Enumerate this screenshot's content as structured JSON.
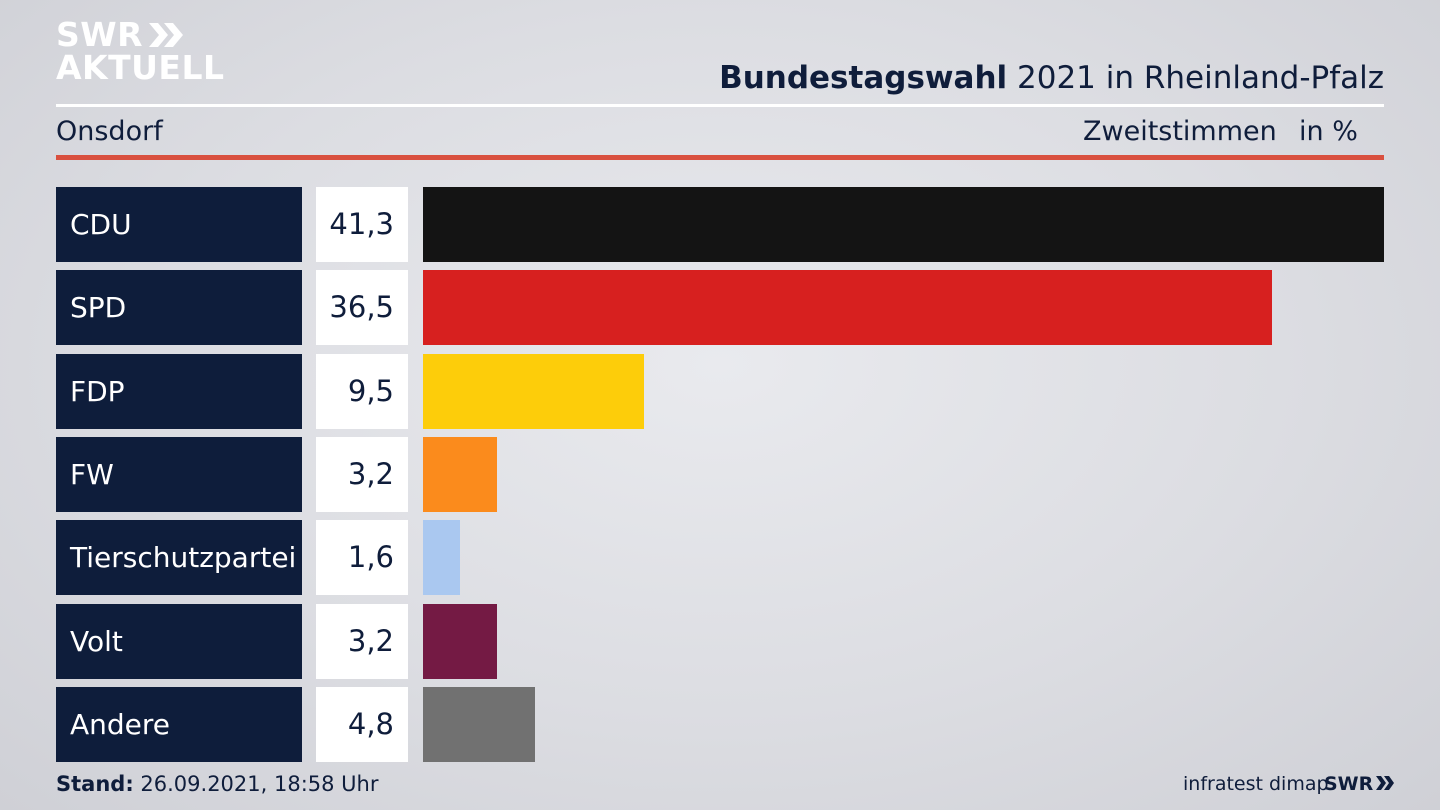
{
  "brand": {
    "line1": "SWR",
    "line2": "AKTUELL"
  },
  "header": {
    "title_bold": "Bundestagswahl",
    "title_rest": " 2021 in Rheinland-Pfalz",
    "region": "Onsdorf",
    "metric": "Zweitstimmen",
    "unit": "in %"
  },
  "chart_data": {
    "type": "bar",
    "orientation": "horizontal",
    "title": "Bundestagswahl 2021 in Rheinland-Pfalz",
    "subtitle": "Onsdorf",
    "xlabel": "Zweitstimmen in %",
    "ylabel": "",
    "xlim": [
      0,
      41.3
    ],
    "categories": [
      "CDU",
      "SPD",
      "FDP",
      "FW",
      "Tierschutzpartei",
      "Volt",
      "Andere"
    ],
    "values": [
      41.3,
      36.5,
      9.5,
      3.2,
      1.6,
      3.2,
      4.8
    ],
    "labels": [
      "41,3",
      "36,5",
      "9,5",
      "3,2",
      "1,6",
      "3,2",
      "4,8"
    ],
    "colors": [
      "#141414",
      "#d7201f",
      "#fdcd0a",
      "#fb8b1c",
      "#aac8f0",
      "#741a44",
      "#717171"
    ]
  },
  "footer": {
    "stand_label": "Stand:",
    "stand_value": " 26.09.2021, 18:58 Uhr",
    "source": "infratest dimap",
    "brand_small": "SWR"
  }
}
